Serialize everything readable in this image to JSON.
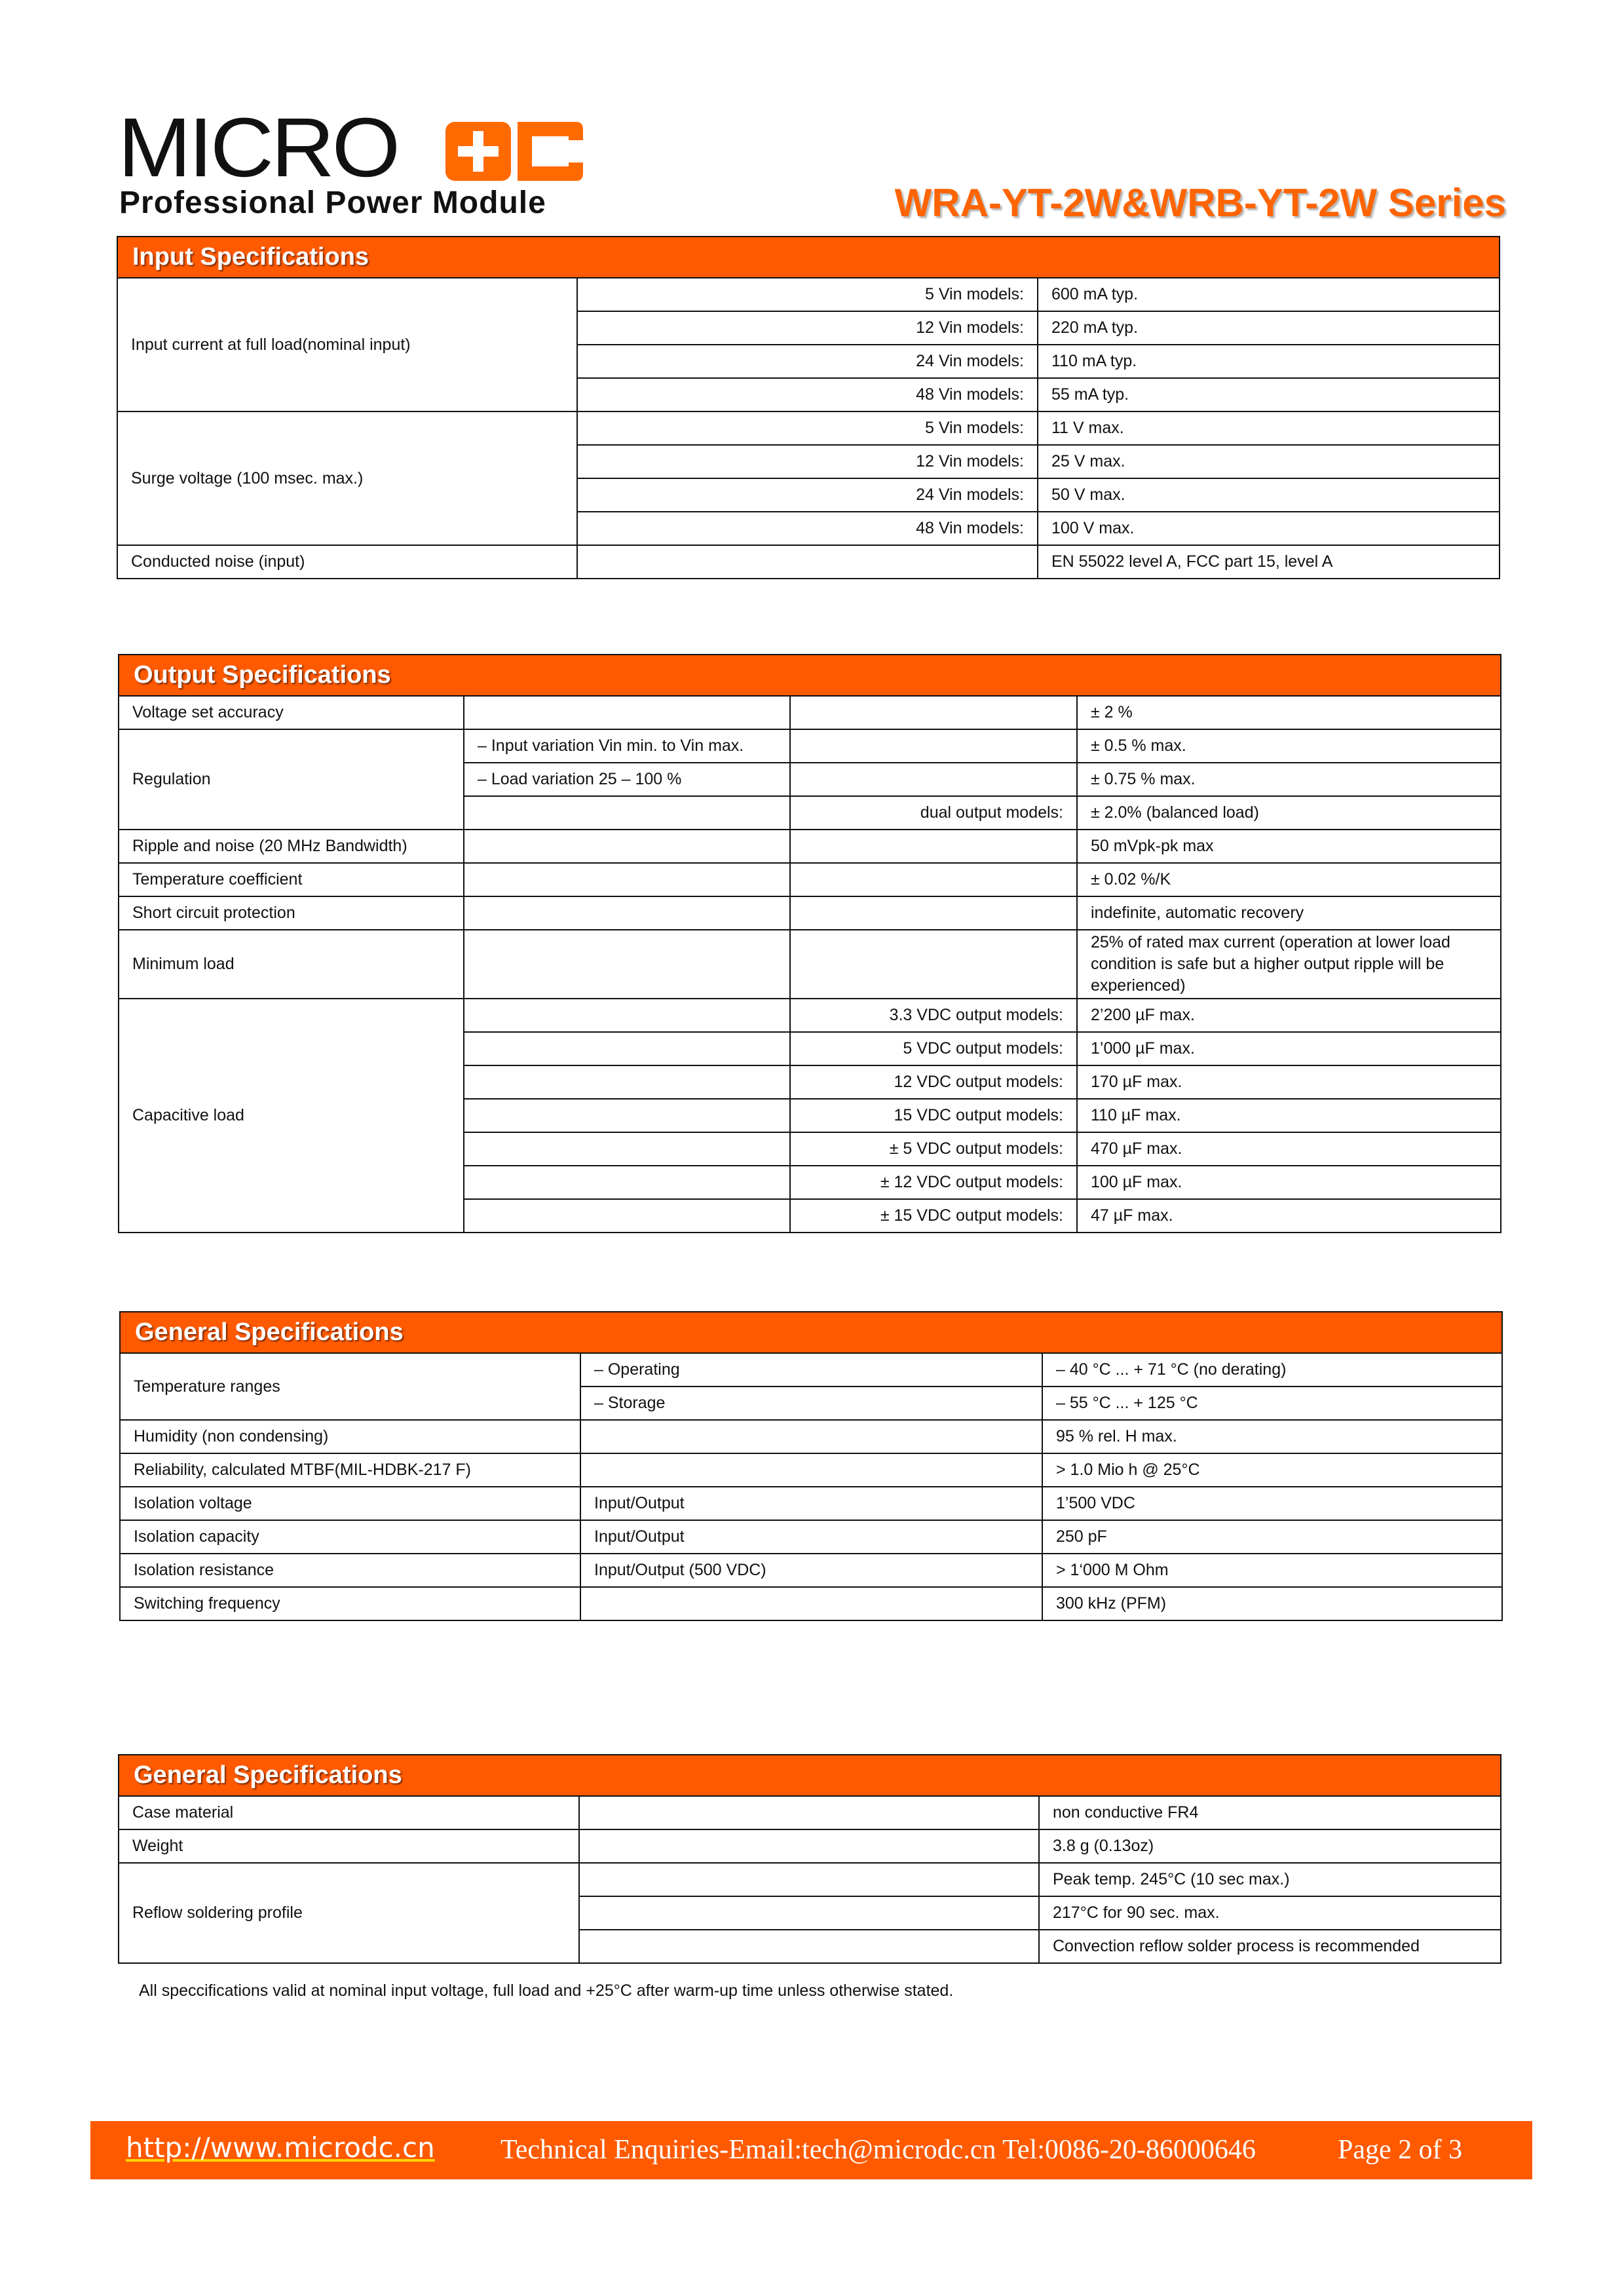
{
  "logo": {
    "text": "MICRODC",
    "tagline": "Professional Power Module"
  },
  "header": {
    "series_title": "WRA-YT-2W&WRB-YT-2W Series"
  },
  "colors": {
    "accent": "#ff5a00",
    "title": "#ff6400"
  },
  "input_specs": {
    "title": "Input Specifications",
    "input_current": {
      "label": "Input current at full load(nominal input)",
      "rows": [
        {
          "model": "5 Vin models:",
          "value": "600 mA typ."
        },
        {
          "model": "12 Vin models:",
          "value": "220 mA typ."
        },
        {
          "model": "24 Vin models:",
          "value": "110 mA typ."
        },
        {
          "model": "48 Vin models:",
          "value": "55 mA typ."
        }
      ]
    },
    "surge_voltage": {
      "label": "Surge voltage (100 msec. max.)",
      "rows": [
        {
          "model": "5 Vin models:",
          "value": "11 V max."
        },
        {
          "model": "12 Vin models:",
          "value": "25 V max."
        },
        {
          "model": "24 Vin models:",
          "value": "50 V max."
        },
        {
          "model": "48 Vin models:",
          "value": "100 V max."
        }
      ]
    },
    "conducted_noise": {
      "label": "Conducted noise (input)",
      "value": "EN 55022 level A, FCC part 15, level A"
    }
  },
  "output_specs": {
    "title": "Output Specifications",
    "voltage_set_accuracy": {
      "label": "Voltage set accuracy",
      "value": "± 2 %"
    },
    "regulation": {
      "label": "Regulation",
      "input_variation": {
        "label": "– Input variation Vin min. to Vin max.",
        "value": "± 0.5 % max."
      },
      "load_variation": {
        "label": "– Load variation 25 – 100 %",
        "value": "± 0.75 % max."
      },
      "dual_output": {
        "label": "dual output models:",
        "value": "± 2.0% (balanced load)"
      }
    },
    "ripple": {
      "label": "Ripple and noise (20 MHz Bandwidth)",
      "value": "50 mVpk-pk max"
    },
    "temp_coefficient": {
      "label": "Temperature coefficient",
      "value": "± 0.02 %/K"
    },
    "short_circuit": {
      "label": "Short circuit protection",
      "value": "indefinite, automatic recovery"
    },
    "minimum_load": {
      "label": "Minimum load",
      "value": "25% of rated max current (operation at lower load condition is safe but a higher output ripple will be experienced)"
    },
    "capacitive_load": {
      "label": "Capacitive load",
      "rows": [
        {
          "model": "3.3 VDC output models:",
          "value": "2’200 µF max."
        },
        {
          "model": "5 VDC output models:",
          "value": "1’000 µF max."
        },
        {
          "model": "12 VDC output models:",
          "value": "170 µF max."
        },
        {
          "model": "15 VDC output models:",
          "value": "110 µF max."
        },
        {
          "model": "± 5 VDC output models:",
          "value": "470 µF max."
        },
        {
          "model": "± 12 VDC output models:",
          "value": "100 µF max."
        },
        {
          "model": "± 15 VDC output models:",
          "value": "47 µF max."
        }
      ]
    }
  },
  "general_specs_1": {
    "title": "General Specifications",
    "temperature": {
      "label": "Temperature ranges",
      "operating": {
        "label": "– Operating",
        "value": "– 40 °C ... + 71 °C (no derating)"
      },
      "storage": {
        "label": "– Storage",
        "value": "– 55 °C ... + 125 °C"
      }
    },
    "rows": [
      {
        "label": "Humidity (non condensing)",
        "condition": "",
        "value": "95 % rel. H max."
      },
      {
        "label": "Reliability, calculated MTBF(MIL-HDBK-217 F)",
        "condition": "",
        "value": "> 1.0 Mio h @ 25°C"
      },
      {
        "label": "Isolation voltage",
        "condition": "Input/Output",
        "value": "1’500 VDC"
      },
      {
        "label": "Isolation capacity",
        "condition": "Input/Output",
        "value": "250 pF"
      },
      {
        "label": "Isolation resistance",
        "condition": "Input/Output (500 VDC)",
        "value": "> 1‘000 M Ohm"
      },
      {
        "label": "Switching frequency",
        "condition": "",
        "value": "300 kHz (PFM)"
      }
    ]
  },
  "general_specs_2": {
    "title": "General Specifications",
    "case_material": {
      "label": "Case material",
      "value": "non conductive FR4"
    },
    "weight": {
      "label": "Weight",
      "value": "3.8 g (0.13oz)"
    },
    "reflow": {
      "label": "Reflow soldering profile",
      "values": [
        "Peak temp. 245°C (10 sec max.)",
        "217°C for 90 sec. max.",
        "Convection reflow solder process is recommended"
      ]
    }
  },
  "note": "All speccifications valid at nominal input voltage, full load and +25°C after warm-up time unless otherwise stated.",
  "footer": {
    "url": "http://www.microdc.cn",
    "contact": "Technical Enquiries-Email:tech@microdc.cn Tel:0086-20-86000646",
    "page": "Page 2 of 3"
  }
}
